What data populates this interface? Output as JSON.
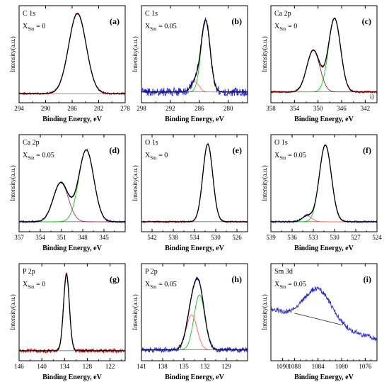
{
  "figure": {
    "ylabel": "Intensity(a.u.)",
    "xlabel": "Binding Energy, eV"
  },
  "chart_data": [
    {
      "panel": "(a)",
      "type": "line",
      "title": "C 1s",
      "subtitle": "X_Sm = 0",
      "xlabel": "Binding Energy, eV",
      "ylabel": "Intensity(a.u.)",
      "xlim": [
        294,
        278
      ],
      "x_reversed": true,
      "xticks": [
        294,
        290,
        286,
        282,
        278
      ],
      "background": 0.04,
      "series": [
        {
          "name": "",
          "role": "raw",
          "color": "#e00000",
          "peaks": [
            {
              "center": 285.2,
              "height": 0.96,
              "fwhm": 3.1
            }
          ],
          "noise": 0.012
        },
        {
          "name": "",
          "role": "fit-envelope",
          "color": "#000000",
          "peaks": [
            {
              "center": 285.2,
              "height": 0.96,
              "fwhm": 3.1
            }
          ]
        }
      ]
    },
    {
      "panel": "(b)",
      "type": "line",
      "title": "C 1s",
      "subtitle": "X_Sm = 0.05",
      "xlabel": "Binding Energy, eV",
      "ylabel": "Intensity(a.u.)",
      "xlim": [
        298,
        276
      ],
      "x_reversed": true,
      "xticks": [
        298,
        292,
        286,
        280
      ],
      "background": 0.06,
      "series": [
        {
          "name": "",
          "role": "raw",
          "color": "#2a2ad8",
          "peaks": [
            {
              "center": 284.7,
              "height": 0.86,
              "fwhm": 2.2
            },
            {
              "center": 286.9,
              "height": 0.12,
              "fwhm": 2.0
            }
          ],
          "noise": 0.05
        },
        {
          "name": "",
          "role": "component",
          "color": "#18c018",
          "peaks": [
            {
              "center": 284.7,
              "height": 0.86,
              "fwhm": 2.2
            }
          ]
        },
        {
          "name": "",
          "role": "component",
          "color": "#ff7070",
          "peaks": [
            {
              "center": 286.9,
              "height": 0.12,
              "fwhm": 2.0
            }
          ]
        },
        {
          "name": "",
          "role": "fit-envelope",
          "color": "#000000",
          "peaks": [
            {
              "center": 284.7,
              "height": 0.86,
              "fwhm": 2.2
            },
            {
              "center": 286.9,
              "height": 0.12,
              "fwhm": 2.0
            }
          ]
        }
      ]
    },
    {
      "panel": "(c)",
      "type": "line",
      "title": "Ca 2p",
      "subtitle": "X_Sm = 0",
      "xlabel": "Binding Energy, eV",
      "ylabel": "Intensity(a.u.)",
      "xlim": [
        358,
        340
      ],
      "x_reversed": true,
      "xticks": [
        358,
        354,
        350,
        346,
        342
      ],
      "background": 0.06,
      "annotation": "i)",
      "series": [
        {
          "name": "",
          "role": "raw",
          "color": "#e00000",
          "peaks": [
            {
              "center": 347.2,
              "height": 0.88,
              "fwhm": 2.4
            },
            {
              "center": 350.8,
              "height": 0.5,
              "fwhm": 2.6
            }
          ],
          "noise": 0.012
        },
        {
          "name": "",
          "role": "component",
          "color": "#18c018",
          "peaks": [
            {
              "center": 347.2,
              "height": 0.88,
              "fwhm": 2.4
            }
          ]
        },
        {
          "name": "",
          "role": "component",
          "color": "#8a2a4a",
          "peaks": [
            {
              "center": 350.8,
              "height": 0.5,
              "fwhm": 2.6
            }
          ]
        },
        {
          "name": "",
          "role": "fit-envelope",
          "color": "#000000",
          "peaks": [
            {
              "center": 347.2,
              "height": 0.88,
              "fwhm": 2.4
            },
            {
              "center": 350.8,
              "height": 0.5,
              "fwhm": 2.6
            }
          ]
        }
      ]
    },
    {
      "panel": "(d)",
      "type": "line",
      "title": "Ca 2p",
      "subtitle": "X_Sm = 0.05",
      "xlabel": "Binding Energy, eV",
      "ylabel": "Intensity(a.u.)",
      "xlim": [
        357,
        342
      ],
      "x_reversed": true,
      "xticks": [
        357,
        354,
        351,
        348,
        345
      ],
      "background": 0.05,
      "series": [
        {
          "name": "",
          "role": "raw",
          "color": "#2a2ad8",
          "peaks": [
            {
              "center": 347.5,
              "height": 0.86,
              "fwhm": 2.5
            },
            {
              "center": 351.1,
              "height": 0.47,
              "fwhm": 2.5
            }
          ],
          "noise": 0.012
        },
        {
          "name": "",
          "role": "component",
          "color": "#18c018",
          "peaks": [
            {
              "center": 347.5,
              "height": 0.86,
              "fwhm": 2.5
            }
          ]
        },
        {
          "name": "",
          "role": "component",
          "color": "#a0306a",
          "peaks": [
            {
              "center": 351.1,
              "height": 0.47,
              "fwhm": 2.5
            }
          ]
        },
        {
          "name": "",
          "role": "fit-envelope",
          "color": "#000000",
          "peaks": [
            {
              "center": 347.5,
              "height": 0.86,
              "fwhm": 2.5
            },
            {
              "center": 351.1,
              "height": 0.47,
              "fwhm": 2.5
            }
          ]
        }
      ]
    },
    {
      "panel": "(e)",
      "type": "line",
      "title": "O 1s",
      "subtitle": "X_Sm = 0",
      "xlabel": "Binding Energy, eV",
      "ylabel": "Intensity(a.u.)",
      "xlim": [
        544,
        524
      ],
      "x_reversed": true,
      "xticks": [
        542,
        538,
        534,
        530,
        526
      ],
      "background": 0.05,
      "series": [
        {
          "name": "",
          "role": "raw",
          "color": "#e00000",
          "peaks": [
            {
              "center": 531.5,
              "height": 0.93,
              "fwhm": 2.2
            }
          ],
          "noise": 0.01
        },
        {
          "name": "",
          "role": "fit-envelope",
          "color": "#000000",
          "peaks": [
            {
              "center": 531.5,
              "height": 0.93,
              "fwhm": 2.2
            }
          ]
        }
      ]
    },
    {
      "panel": "(f)",
      "type": "line",
      "title": "O 1s",
      "subtitle": "X_Sm = 0.05",
      "xlabel": "Binding Energy, eV",
      "ylabel": "Intensity(a.u.)",
      "xlim": [
        539,
        524
      ],
      "x_reversed": true,
      "xticks": [
        539,
        536,
        533,
        530,
        527,
        524
      ],
      "background": 0.05,
      "series": [
        {
          "name": "",
          "role": "raw",
          "color": "#2a2ad8",
          "peaks": [
            {
              "center": 531.3,
              "height": 0.92,
              "fwhm": 2.0
            },
            {
              "center": 533.9,
              "height": 0.07,
              "fwhm": 1.6
            }
          ],
          "noise": 0.012
        },
        {
          "name": "",
          "role": "component",
          "color": "#18c018",
          "peaks": [
            {
              "center": 531.3,
              "height": 0.92,
              "fwhm": 2.0
            }
          ]
        },
        {
          "name": "",
          "role": "component",
          "color": "#ff6060",
          "peaks": [
            {
              "center": 533.9,
              "height": 0.07,
              "fwhm": 1.6
            }
          ]
        },
        {
          "name": "",
          "role": "fit-envelope",
          "color": "#000000",
          "peaks": [
            {
              "center": 531.3,
              "height": 0.92,
              "fwhm": 2.0
            },
            {
              "center": 533.9,
              "height": 0.07,
              "fwhm": 1.6
            }
          ]
        }
      ]
    },
    {
      "panel": "(g)",
      "type": "line",
      "title": "P 2p",
      "subtitle": "X_Sm = 0",
      "xlabel": "Binding Energy, eV",
      "ylabel": "Intensity(a.u.)",
      "xlim": [
        146,
        118
      ],
      "x_reversed": true,
      "xticks": [
        146,
        140,
        134,
        128,
        122
      ],
      "background": 0.05,
      "series": [
        {
          "name": "",
          "role": "raw",
          "color": "#e00000",
          "peaks": [
            {
              "center": 133.5,
              "height": 0.92,
              "fwhm": 1.8
            }
          ],
          "noise": 0.025
        },
        {
          "name": "",
          "role": "fit-envelope",
          "color": "#000000",
          "peaks": [
            {
              "center": 133.5,
              "height": 0.92,
              "fwhm": 1.8
            }
          ]
        }
      ]
    },
    {
      "panel": "(h)",
      "type": "line",
      "title": "P 2p",
      "subtitle": "X_Sm = 0.05",
      "xlabel": "Binding Energy, eV",
      "ylabel": "Intensity(a.u.)",
      "xlim": [
        141,
        126
      ],
      "x_reversed": true,
      "xticks": [
        141,
        138,
        135,
        132,
        129
      ],
      "background": 0.06,
      "series": [
        {
          "name": "",
          "role": "raw",
          "color": "#2a2ad8",
          "peaks": [
            {
              "center": 132.8,
              "height": 0.66,
              "fwhm": 1.8
            },
            {
              "center": 133.9,
              "height": 0.42,
              "fwhm": 1.8
            }
          ],
          "noise": 0.03
        },
        {
          "name": "",
          "role": "component",
          "color": "#18c018",
          "peaks": [
            {
              "center": 132.8,
              "height": 0.66,
              "fwhm": 1.8
            }
          ]
        },
        {
          "name": "",
          "role": "component",
          "color": "#ff6060",
          "peaks": [
            {
              "center": 133.9,
              "height": 0.42,
              "fwhm": 1.8
            }
          ]
        },
        {
          "name": "",
          "role": "fit-envelope",
          "color": "#000000",
          "peaks": [
            {
              "center": 132.8,
              "height": 0.66,
              "fwhm": 1.8
            },
            {
              "center": 133.9,
              "height": 0.42,
              "fwhm": 1.8
            }
          ]
        }
      ]
    },
    {
      "panel": "(i)",
      "type": "line",
      "title": "Sm 3d",
      "subtitle": "X_Sm = 0.05",
      "xlabel": "Binding Energy, eV",
      "ylabel": "Intensity(a.u.)",
      "xlim": [
        1092,
        1074
      ],
      "x_reversed": true,
      "xticks": [
        1090,
        1088,
        1084,
        1080,
        1076
      ],
      "background_line": {
        "x": [
          1088,
          1080
        ],
        "y": [
          0.5,
          0.36
        ]
      },
      "series": [
        {
          "name": "",
          "role": "raw",
          "color": "#2a2ad8",
          "baseline_slope": true,
          "peaks": [
            {
              "center": 1084,
              "height": 0.4,
              "fwhm": 5.5
            }
          ],
          "noise": 0.03
        },
        {
          "name": "",
          "role": "background",
          "color": "#222222",
          "peaks": []
        }
      ]
    }
  ]
}
